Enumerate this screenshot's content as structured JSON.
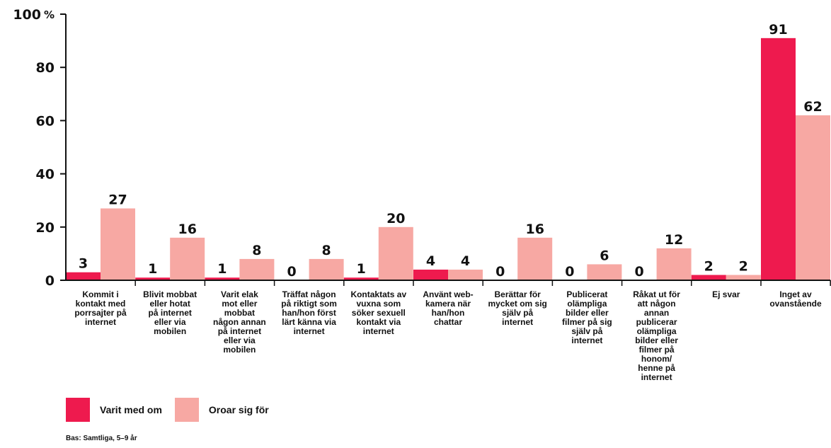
{
  "chart_data": {
    "type": "bar",
    "y_unit_label": "%",
    "ylim": [
      0,
      100
    ],
    "yticks": [
      0,
      20,
      40,
      60,
      80,
      100
    ],
    "grid": false,
    "categories": [
      "Kommit i\nkontakt med\nporrsajter på\ninternet",
      "Blivit mobbat\neller hotat\npå internet\neller via\nmobilen",
      "Varit elak\nmot eller\nmobbat\nnågon annan\npå internet\neller via\nmobilen",
      "Träffat någon\npå riktigt som\nhan/hon först\nlärt känna via\ninternet",
      "Kontaktats av\nvuxna som\nsöker sexuell\nkontakt via\ninternet",
      "Använt web-\nkamera när\nhan/hon\nchattar",
      "Berättar för\nmycket om sig\nsjälv på\ninternet",
      "Publicerat\nolämpliga\nbilder eller\nfilmer på sig\nsjälv på\ninternet",
      "Råkat ut för\natt någon\nannan\npublicerar\nolämpliga\nbilder eller\nfilmer på\nhonom/\nhenne på\ninternet",
      "Ej svar",
      "Inget av\novanstående"
    ],
    "series": [
      {
        "name": "Varit med om",
        "color": "#ee1a4e",
        "values": [
          3,
          1,
          1,
          0,
          1,
          4,
          0,
          0,
          0,
          2,
          91
        ]
      },
      {
        "name": "Oroar sig för",
        "color": "#f7a8a3",
        "values": [
          27,
          16,
          8,
          8,
          20,
          4,
          16,
          6,
          12,
          2,
          62
        ]
      }
    ],
    "legend_position": "bottom-left",
    "footnote": "Bas: Samtliga, 5–9 år"
  }
}
